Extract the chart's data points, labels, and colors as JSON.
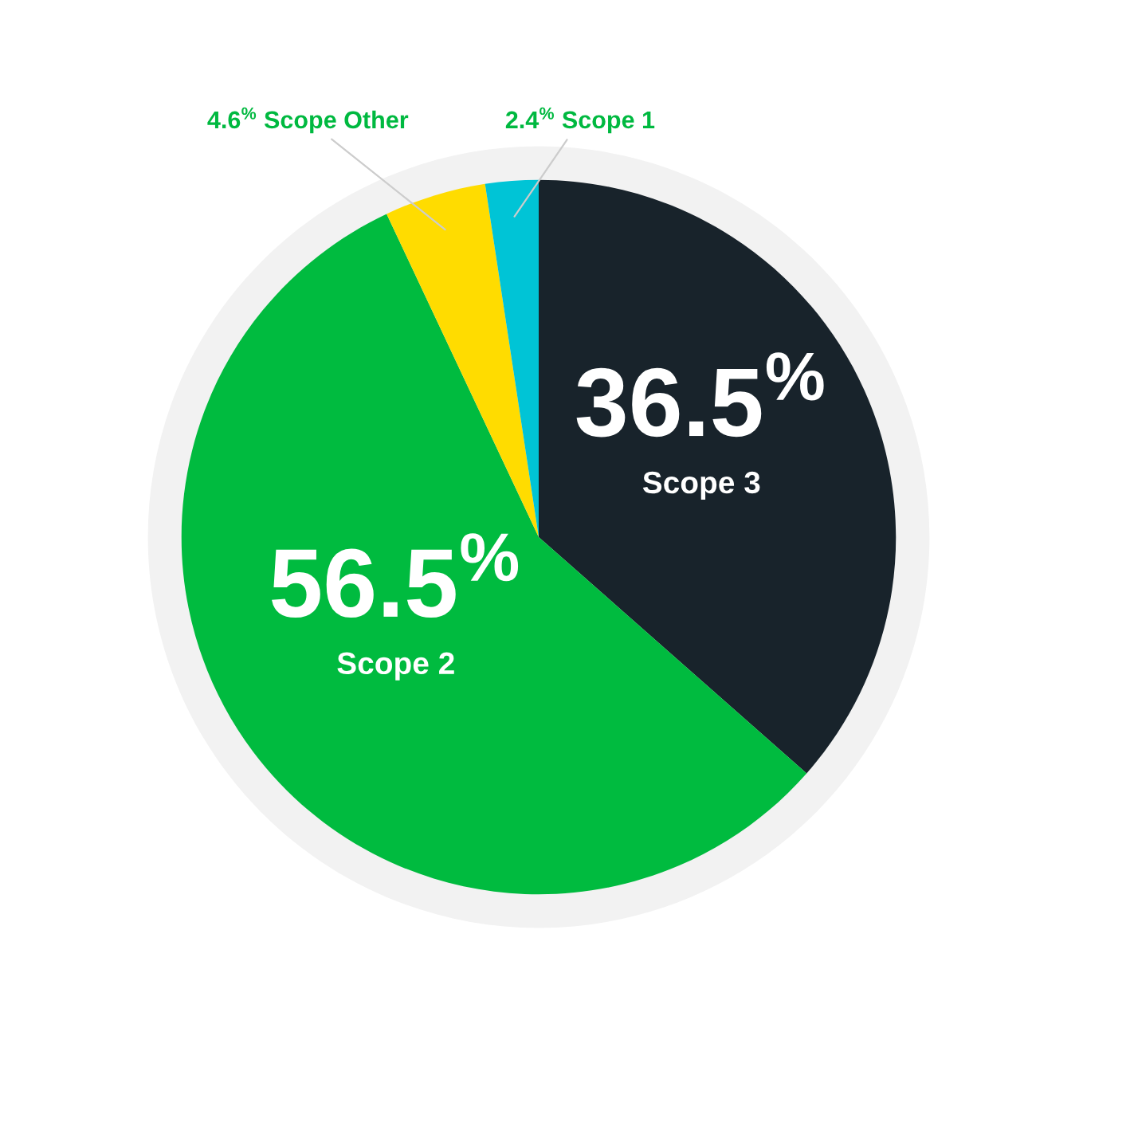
{
  "chart_data": {
    "type": "pie",
    "categories": [
      "Scope 3",
      "Scope 2",
      "Scope Other",
      "Scope 1"
    ],
    "values": [
      36.5,
      56.5,
      4.6,
      2.4
    ],
    "colors": [
      "#18232b",
      "#00bb3f",
      "#ffdc00",
      "#00c4d6"
    ],
    "value_labels": [
      "36.5$^{%}$",
      "56.5$^{%}$",
      "4.6$^{%}$",
      "2.4$^{%}$"
    ]
  }
}
